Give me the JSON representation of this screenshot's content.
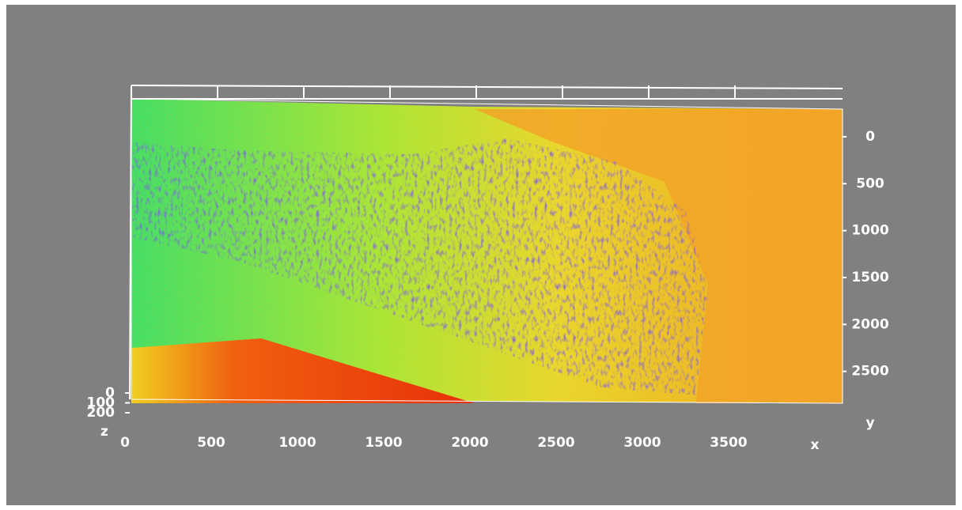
{
  "chart_data": {
    "type": "surface",
    "x_label": "x",
    "y_label": "y",
    "z_label": "z",
    "xlim": [
      0,
      4124
    ],
    "xticks": [
      0,
      500,
      1000,
      1500,
      2000,
      2500,
      3000,
      3500
    ],
    "ylim": [
      -320,
      2840
    ],
    "yticks": [
      0,
      500,
      1000,
      1500,
      2000,
      2500
    ],
    "zlim": [
      0,
      200
    ],
    "zticks": [
      0,
      100,
      200
    ]
  }
}
